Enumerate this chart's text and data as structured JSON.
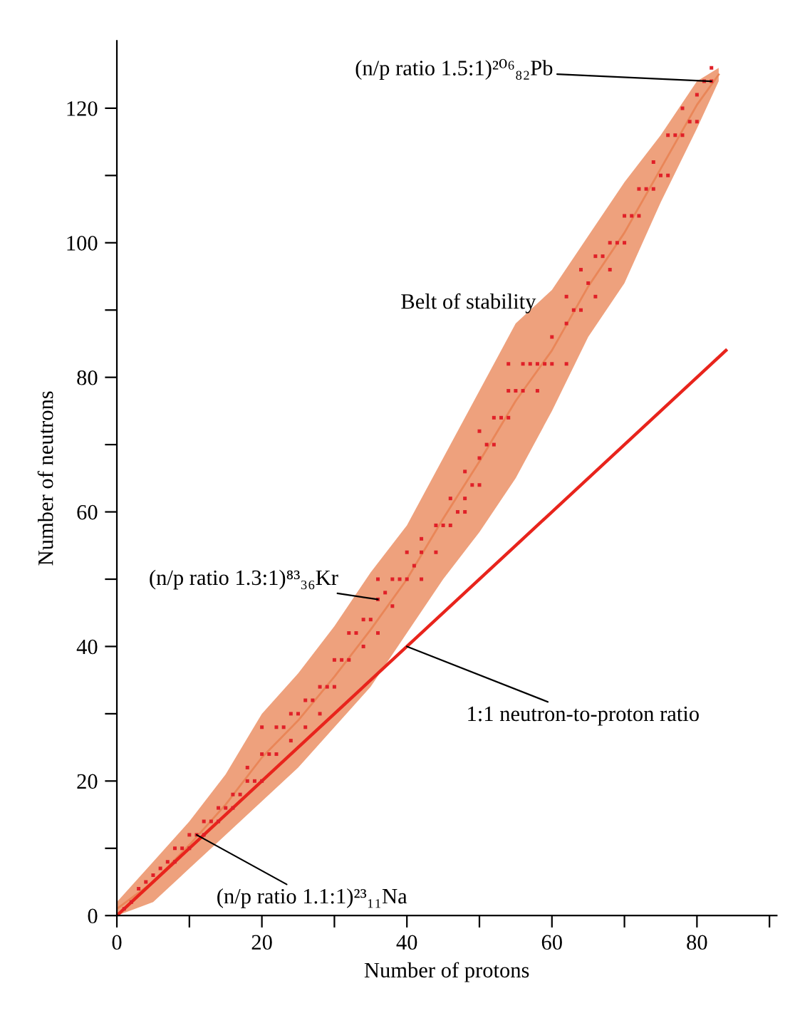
{
  "chart_data": {
    "type": "scatter",
    "xlabel": "Number of protons",
    "ylabel": "Number of neutrons",
    "xlim": [
      0,
      91
    ],
    "ylim": [
      0,
      130
    ],
    "xticks": [
      0,
      {
        "value": 10,
        "label": null
      },
      20,
      {
        "value": 30,
        "label": null
      },
      40,
      {
        "value": 50,
        "label": null
      },
      60,
      {
        "value": 70,
        "label": null
      },
      80,
      {
        "value": 90,
        "label": null
      }
    ],
    "yticks": [
      0,
      {
        "value": 10,
        "label": null
      },
      20,
      {
        "value": 30,
        "label": null
      },
      40,
      {
        "value": 50,
        "label": null
      },
      60,
      {
        "value": 70,
        "label": null
      },
      80,
      {
        "value": 90,
        "label": null
      },
      100,
      {
        "value": 110,
        "label": null
      },
      120
    ],
    "grid": false,
    "legend": false,
    "series": [
      {
        "type": "line",
        "color": "#e98658",
        "x": [
          0,
          5,
          10,
          15,
          20,
          25,
          30,
          35,
          40,
          45,
          50,
          55,
          60,
          65,
          70,
          75,
          80,
          83
        ],
        "lower": [
          0,
          2,
          7,
          12,
          17,
          22,
          28,
          34,
          42,
          50,
          57,
          65,
          75,
          86,
          94,
          106,
          117,
          124
        ],
        "upper": [
          2,
          8,
          14,
          21,
          30,
          36,
          43,
          51,
          58,
          68,
          78,
          88,
          93,
          101,
          109,
          116,
          124,
          126
        ],
        "values": [
          1,
          5,
          10.5,
          16.5,
          23.5,
          29,
          35.5,
          42.5,
          50,
          59,
          67.5,
          76.5,
          84,
          93.5,
          101.5,
          111,
          120.5,
          125
        ]
      },
      {
        "type": "line",
        "color": "#e8241c",
        "line_style": "solid",
        "x": [
          0,
          84
        ],
        "values": [
          0,
          84
        ]
      },
      {
        "color": "#e02028",
        "marker": "square",
        "x": [
          1,
          2,
          3,
          4,
          5,
          6,
          7,
          8,
          8,
          9,
          10,
          10,
          11,
          12,
          12,
          13,
          14,
          14,
          15,
          16,
          16,
          17,
          18,
          18,
          19,
          20,
          20,
          20,
          21,
          22,
          22,
          23,
          24,
          24,
          25,
          26,
          26,
          27,
          28,
          28,
          29,
          30,
          30,
          31,
          32,
          32,
          33,
          34,
          34,
          35,
          36,
          36,
          36,
          37,
          38,
          38,
          39,
          40,
          40,
          41,
          42,
          42,
          42,
          44,
          44,
          45,
          46,
          46,
          47,
          48,
          48,
          48,
          49,
          50,
          50,
          50,
          51,
          52,
          52,
          53,
          54,
          54,
          54,
          55,
          56,
          56,
          57,
          58,
          58,
          59,
          60,
          60,
          62,
          62,
          62,
          63,
          64,
          64,
          65,
          66,
          66,
          67,
          68,
          68,
          69,
          70,
          70,
          71,
          72,
          72,
          73,
          74,
          74,
          75,
          76,
          76,
          77,
          78,
          78,
          79,
          80,
          80,
          81,
          82,
          82
        ],
        "values": [
          1,
          2,
          4,
          5,
          6,
          7,
          8,
          8,
          10,
          10,
          10,
          12,
          12,
          12,
          14,
          14,
          14,
          16,
          16,
          16,
          18,
          18,
          20,
          22,
          20,
          20,
          24,
          28,
          24,
          24,
          28,
          28,
          26,
          30,
          30,
          28,
          32,
          32,
          30,
          34,
          34,
          34,
          38,
          38,
          38,
          42,
          42,
          40,
          44,
          44,
          42,
          47,
          50,
          48,
          46,
          50,
          50,
          50,
          54,
          52,
          50,
          54,
          56,
          54,
          58,
          58,
          58,
          62,
          60,
          60,
          62,
          66,
          64,
          64,
          68,
          72,
          70,
          70,
          74,
          74,
          74,
          78,
          82,
          78,
          78,
          82,
          82,
          78,
          82,
          82,
          82,
          86,
          82,
          88,
          92,
          90,
          90,
          96,
          94,
          92,
          98,
          98,
          96,
          100,
          100,
          100,
          104,
          104,
          104,
          108,
          108,
          108,
          112,
          110,
          110,
          116,
          116,
          116,
          120,
          118,
          118,
          122,
          124,
          124,
          126
        ]
      }
    ],
    "annotations": [
      {
        "text": "(n/p ratio 1.5:1)²⁰⁶₈₂Pb",
        "x": 82,
        "y": 124
      },
      {
        "text": "Belt of stability"
      },
      {
        "text": "(n/p ratio 1.3:1)⁸³₃₆Kr",
        "x": 36,
        "y": 47
      },
      {
        "text": "1:1 neutron-to-proton ratio",
        "x": 40,
        "y": 40
      },
      {
        "text": "(n/p ratio 1.1:1)²³₁₁Na",
        "x": 11,
        "y": 12
      }
    ]
  }
}
